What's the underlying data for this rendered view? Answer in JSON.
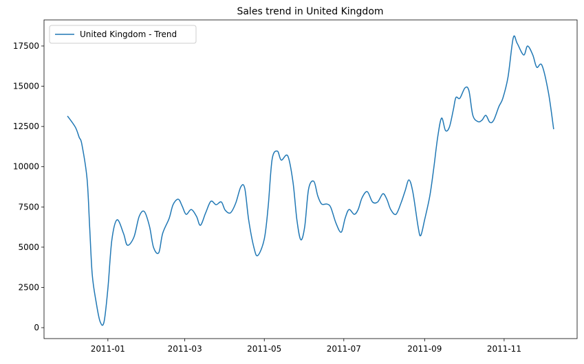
{
  "chart_data": {
    "type": "line",
    "title": "Sales trend in United Kingdom",
    "x": [
      "2010-12-01",
      "2010-12-07",
      "2010-12-10",
      "2010-12-12",
      "2010-12-16",
      "2010-12-18",
      "2010-12-20",
      "2010-12-23",
      "2010-12-26",
      "2010-12-29",
      "2011-01-01",
      "2011-01-04",
      "2011-01-08",
      "2011-01-13",
      "2011-01-16",
      "2011-01-21",
      "2011-01-25",
      "2011-01-29",
      "2011-02-02",
      "2011-02-05",
      "2011-02-09",
      "2011-02-12",
      "2011-02-17",
      "2011-02-20",
      "2011-02-24",
      "2011-02-27",
      "2011-03-02",
      "2011-03-06",
      "2011-03-10",
      "2011-03-13",
      "2011-03-17",
      "2011-03-21",
      "2011-03-25",
      "2011-03-29",
      "2011-04-01",
      "2011-04-05",
      "2011-04-09",
      "2011-04-13",
      "2011-04-16",
      "2011-04-19",
      "2011-04-23",
      "2011-04-26",
      "2011-05-01",
      "2011-05-04",
      "2011-05-07",
      "2011-05-11",
      "2011-05-14",
      "2011-05-19",
      "2011-05-23",
      "2011-05-26",
      "2011-05-29",
      "2011-06-01",
      "2011-06-04",
      "2011-06-08",
      "2011-06-11",
      "2011-06-14",
      "2011-06-18",
      "2011-06-21",
      "2011-06-25",
      "2011-06-29",
      "2011-07-02",
      "2011-07-05",
      "2011-07-09",
      "2011-07-12",
      "2011-07-15",
      "2011-07-19",
      "2011-07-23",
      "2011-07-27",
      "2011-07-31",
      "2011-08-03",
      "2011-08-06",
      "2011-08-10",
      "2011-08-14",
      "2011-08-17",
      "2011-08-20",
      "2011-08-23",
      "2011-08-27",
      "2011-08-29",
      "2011-09-01",
      "2011-09-05",
      "2011-09-08",
      "2011-09-11",
      "2011-09-14",
      "2011-09-17",
      "2011-09-20",
      "2011-09-23",
      "2011-09-25",
      "2011-09-28",
      "2011-10-02",
      "2011-10-05",
      "2011-10-08",
      "2011-10-12",
      "2011-10-15",
      "2011-10-18",
      "2011-10-21",
      "2011-10-24",
      "2011-10-28",
      "2011-10-31",
      "2011-11-04",
      "2011-11-08",
      "2011-11-11",
      "2011-11-16",
      "2011-11-19",
      "2011-11-23",
      "2011-11-26",
      "2011-11-30",
      "2011-12-05",
      "2011-12-09"
    ],
    "series": [
      {
        "name": "United Kingdom - Trend",
        "color": "#1f77b4",
        "values": [
          13150,
          12460,
          11820,
          11400,
          9260,
          6270,
          3290,
          1580,
          380,
          340,
          2430,
          5420,
          6700,
          5850,
          5120,
          5630,
          6910,
          7210,
          6270,
          4990,
          4650,
          5850,
          6790,
          7640,
          7980,
          7550,
          7040,
          7340,
          6910,
          6360,
          7130,
          7850,
          7640,
          7810,
          7300,
          7130,
          7720,
          8750,
          8660,
          6700,
          4990,
          4480,
          5510,
          7550,
          10460,
          10970,
          10410,
          10670,
          9050,
          6700,
          5460,
          6270,
          8620,
          9090,
          8190,
          7680,
          7680,
          7470,
          6490,
          5930,
          6790,
          7340,
          7040,
          7340,
          8070,
          8450,
          7810,
          7810,
          8320,
          7980,
          7340,
          7040,
          7770,
          8490,
          9180,
          8410,
          6270,
          5720,
          6700,
          8190,
          9900,
          11820,
          13020,
          12250,
          12460,
          13530,
          14300,
          14250,
          14900,
          14720,
          13190,
          12800,
          12890,
          13190,
          12760,
          12890,
          13740,
          14250,
          15580,
          18010,
          17670,
          16940,
          17500,
          16940,
          16180,
          16300,
          14600,
          12330
        ]
      }
    ],
    "xlim": [
      "2010-11-13",
      "2011-12-27"
    ],
    "xticks": [
      {
        "value": "2011-01-01",
        "label": "2011-01"
      },
      {
        "value": "2011-03-01",
        "label": "2011-03"
      },
      {
        "value": "2011-05-01",
        "label": "2011-05"
      },
      {
        "value": "2011-07-01",
        "label": "2011-07"
      },
      {
        "value": "2011-09-01",
        "label": "2011-09"
      },
      {
        "value": "2011-11-01",
        "label": "2011-11"
      }
    ],
    "ylim": [
      -680,
      19120
    ],
    "yticks": [
      0,
      2500,
      5000,
      7500,
      10000,
      12500,
      15000,
      17500
    ],
    "legend": "upper left"
  }
}
